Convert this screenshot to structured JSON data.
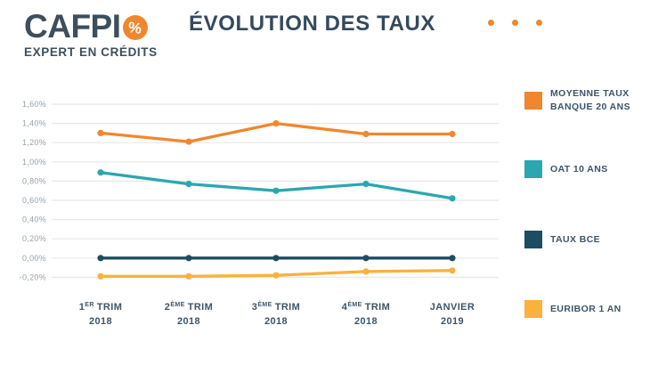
{
  "header": {
    "logo": {
      "brand": "CAFPI",
      "percent": "%",
      "tagline": "EXPERT EN CRÉDITS"
    },
    "title": "ÉVOLUTION DES TAUX"
  },
  "colors": {
    "accent_orange": "#F0872E",
    "teal": "#2AA7B0",
    "navy": "#1D4D63",
    "yellow": "#F9B23C",
    "title_text": "#35495E",
    "tick_text": "#3D5568",
    "axis_label_text": "#95A1AB",
    "gridline": "#E8E8E8"
  },
  "chart_data": {
    "type": "line",
    "title": "ÉVOLUTION DES TAUX",
    "xlabel": "",
    "ylabel": "",
    "ylim": [
      -0.2,
      1.6
    ],
    "y_step": 0.2,
    "y_ticks": [
      "1,60%",
      "1,40%",
      "1,20%",
      "1,00%",
      "0,80%",
      "0,60%",
      "0,40%",
      "0,20%",
      "0,00%",
      "-0,20%"
    ],
    "grid": "horizontal",
    "legend_position": "right",
    "categories": [
      {
        "main": "1",
        "sup": "ER",
        "rest": "TRIM",
        "line2": "2018",
        "text": "1er trim 2018"
      },
      {
        "main": "2",
        "sup": "ÈME",
        "rest": "TRIM",
        "line2": "2018",
        "text": "2ème trim 2018"
      },
      {
        "main": "3",
        "sup": "ÈME",
        "rest": "TRIM",
        "line2": "2018",
        "text": "3ème trim 2018"
      },
      {
        "main": "4",
        "sup": "ÈME",
        "rest": "TRIM",
        "line2": "2018",
        "text": "4ème trim 2018"
      },
      {
        "main": "JANVIER",
        "sup": "",
        "rest": "",
        "line2": "2019",
        "text": "Janvier 2019"
      }
    ],
    "series": [
      {
        "name": "MOYENNE TAUX BANQUE 20 ANS",
        "color": "#F0872E",
        "values": [
          1.3,
          1.21,
          1.4,
          1.29,
          1.29
        ]
      },
      {
        "name": "OAT 10 ANS",
        "color": "#2AA7B0",
        "values": [
          0.89,
          0.77,
          0.7,
          0.77,
          0.62
        ]
      },
      {
        "name": "TAUX BCE",
        "color": "#1D4D63",
        "values": [
          0.0,
          0.0,
          0.0,
          0.0,
          0.0
        ]
      },
      {
        "name": "EURIBOR 1 AN",
        "color": "#F9B23C",
        "values": [
          -0.19,
          -0.19,
          -0.18,
          -0.14,
          -0.13
        ]
      }
    ]
  }
}
